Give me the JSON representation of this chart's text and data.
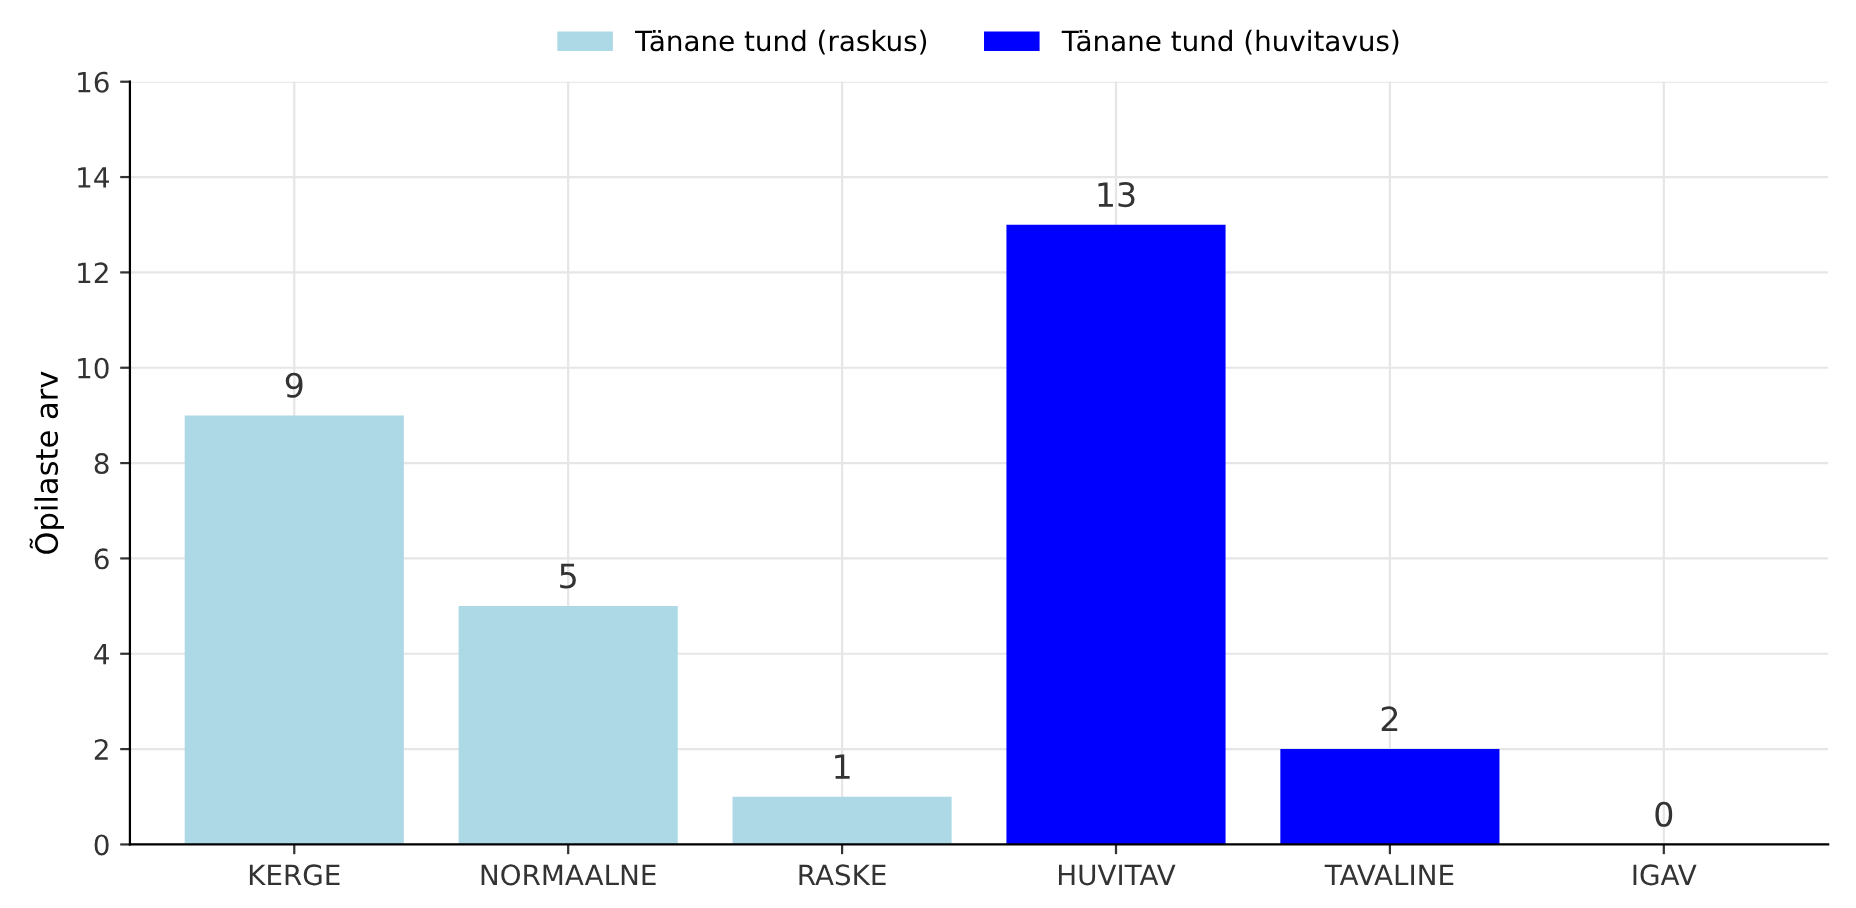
{
  "chart_data": {
    "type": "bar",
    "ylabel": "Õpilaste arv",
    "categories": [
      "KERGE",
      "NORMAALNE",
      "RASKE",
      "HUVITAV",
      "TAVALINE",
      "IGAV"
    ],
    "series": [
      {
        "name": "Tänane tund (raskus)",
        "color": "#add8e6",
        "values": [
          9,
          5,
          1,
          null,
          null,
          null
        ]
      },
      {
        "name": "Tänane tund (huvitavus)",
        "color": "#0000ff",
        "values": [
          null,
          null,
          null,
          13,
          2,
          0
        ]
      }
    ],
    "ylim": [
      0,
      16
    ],
    "yticks": [
      0,
      2,
      4,
      6,
      8,
      10,
      12,
      14,
      16
    ],
    "grid": true,
    "legend": "top",
    "data_labels": true
  }
}
